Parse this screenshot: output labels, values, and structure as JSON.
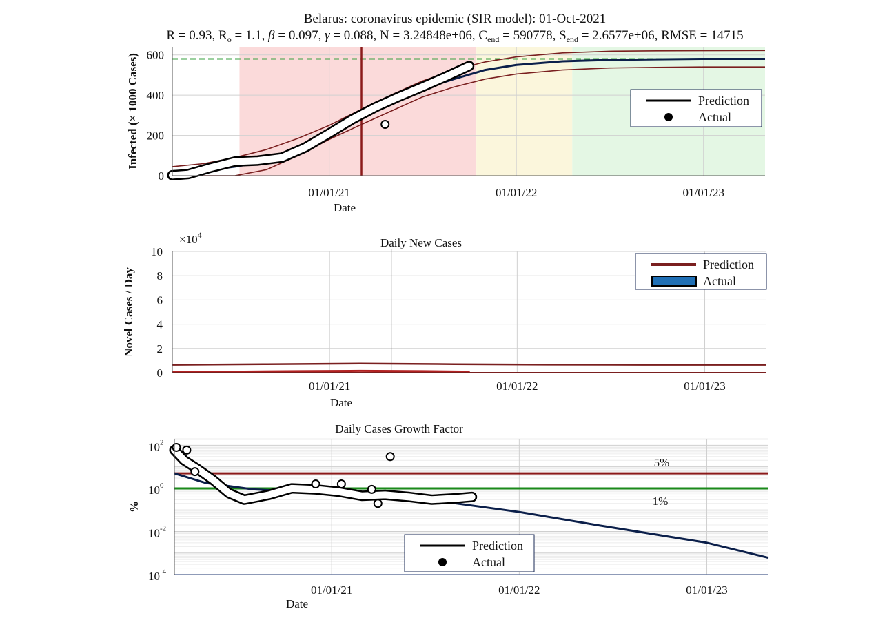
{
  "figure": {
    "title_line1": "Belarus: coronavirus epidemic (SIR model): 01-Oct-2021",
    "title_line2": {
      "p1": "R = 0.93, R",
      "p1_sub": "o",
      "p2": " = 1.1, ",
      "beta_sym": "β",
      "p3": " = 0.097, ",
      "gamma_sym": "γ",
      "p4": " = 0.088, N = 3.24848e+06, C",
      "c_sub": "end",
      "p5": " = 590778, S",
      "s_sub": "end",
      "p6": " = 2.6577e+06, RMSE = 14715"
    }
  },
  "colors": {
    "prediction": "#0b1f4a",
    "bound": "#7a1f1f",
    "actual_outline": "#000000",
    "actual_fill": "#ffffff",
    "threshold_5": "#8b1a1a",
    "threshold_1": "#1a8a1a",
    "bar_actual": "#1f6fb5",
    "red_zone": "#fbdada",
    "yellow_zone": "#fbf6dc",
    "green_zone": "#e4f7e4"
  },
  "chart_data": [
    {
      "type": "line",
      "ylabel": "Infected (× 1000 Cases)",
      "xlabel": "Date",
      "x_ticks": [
        "01/01/21",
        "01/01/22",
        "01/01/23"
      ],
      "x_range": [
        "2020-03-01",
        "2023-05-01"
      ],
      "y_ticks": [
        0,
        200,
        400,
        600
      ],
      "ylim": [
        0,
        640
      ],
      "grid": true,
      "legend": {
        "position": "right",
        "entries": [
          "Prediction",
          "Actual"
        ]
      },
      "event_line_date": "2021-03-05",
      "plateau_level": 580,
      "zones": [
        {
          "name": "red",
          "from": "2020-07-10",
          "to": "2021-10-15"
        },
        {
          "name": "yellow",
          "from": "2021-10-15",
          "to": "2022-04-20"
        },
        {
          "name": "green",
          "from": "2022-04-20",
          "to": "2023-05-01"
        }
      ],
      "series": [
        {
          "name": "Prediction",
          "x": [
            "2020-03-01",
            "2020-05-01",
            "2020-07-01",
            "2020-09-01",
            "2020-11-01",
            "2021-01-01",
            "2021-03-01",
            "2021-05-01",
            "2021-07-01",
            "2021-09-01",
            "2021-11-01",
            "2022-01-01",
            "2022-04-01",
            "2022-07-01",
            "2022-10-01",
            "2023-01-01",
            "2023-05-01"
          ],
          "y": [
            5,
            25,
            45,
            70,
            120,
            200,
            285,
            360,
            430,
            480,
            525,
            550,
            568,
            575,
            578,
            580,
            580
          ]
        },
        {
          "name": "upper",
          "x": [
            "2020-03-01",
            "2020-05-01",
            "2020-07-01",
            "2020-09-01",
            "2020-11-01",
            "2021-01-01",
            "2021-03-01",
            "2021-05-01",
            "2021-07-01",
            "2021-09-01",
            "2021-11-01",
            "2022-01-01",
            "2022-04-01",
            "2022-07-01",
            "2022-10-01",
            "2023-01-01",
            "2023-05-01"
          ],
          "y": [
            45,
            60,
            90,
            130,
            185,
            250,
            325,
            400,
            470,
            525,
            565,
            590,
            610,
            618,
            620,
            621,
            622
          ]
        },
        {
          "name": "lower",
          "x": [
            "2020-03-01",
            "2020-05-01",
            "2020-07-01",
            "2020-09-01",
            "2020-11-01",
            "2021-01-01",
            "2021-03-01",
            "2021-05-01",
            "2021-07-01",
            "2021-09-01",
            "2021-11-01",
            "2022-01-01",
            "2022-04-01",
            "2022-07-01",
            "2022-10-01",
            "2023-01-01",
            "2023-05-01"
          ],
          "y": [
            0,
            0,
            0,
            30,
            100,
            180,
            250,
            320,
            390,
            440,
            480,
            505,
            525,
            535,
            538,
            540,
            540
          ]
        },
        {
          "name": "Actual",
          "x": [
            "2020-03-01",
            "2020-04-01",
            "2020-05-15",
            "2020-07-01",
            "2020-08-15",
            "2020-10-01",
            "2020-11-15",
            "2021-01-01",
            "2021-02-15",
            "2021-04-01",
            "2021-05-15",
            "2021-07-01",
            "2021-08-15",
            "2021-10-01"
          ],
          "y": [
            2,
            8,
            40,
            70,
            75,
            90,
            140,
            210,
            280,
            340,
            390,
            440,
            490,
            545
          ]
        }
      ],
      "outlier": {
        "x": "2021-04-20",
        "y": 255
      }
    },
    {
      "type": "bar",
      "title": "Daily New Cases",
      "ylabel": "Novel Cases / Day",
      "xlabel": "Date",
      "y_multiplier": "×10",
      "y_multiplier_exp": "4",
      "x_ticks": [
        "01/01/21",
        "01/01/22",
        "01/01/23"
      ],
      "y_ticks": [
        0,
        2,
        4,
        6,
        8,
        10
      ],
      "ylim": [
        0,
        10
      ],
      "grid": true,
      "legend": {
        "position": "top-right",
        "entries": [
          "Prediction",
          "Actual"
        ]
      },
      "event_line_date": "2021-05-01",
      "series": [
        {
          "name": "Prediction",
          "x": [
            "2020-03-01",
            "2020-09-01",
            "2021-03-01",
            "2021-09-01",
            "2022-03-01",
            "2022-09-01",
            "2023-05-01"
          ],
          "y": [
            0.65,
            0.7,
            0.75,
            0.7,
            0.66,
            0.65,
            0.65
          ]
        },
        {
          "name": "Actual",
          "x": [
            "2020-03-01",
            "2020-07-01",
            "2020-11-01",
            "2021-03-01",
            "2021-07-01",
            "2021-10-01"
          ],
          "y": [
            0.05,
            0.08,
            0.12,
            0.15,
            0.12,
            0.08
          ]
        }
      ]
    },
    {
      "type": "line",
      "title": "Daily Cases Growth Factor",
      "ylabel": "%",
      "xlabel": "Date",
      "yscale": "log",
      "x_ticks": [
        "01/01/21",
        "01/01/22",
        "01/01/23"
      ],
      "y_ticks": [
        "10^2",
        "10^0",
        "10^-2",
        "10^-4"
      ],
      "ylim": [
        0.0001,
        200
      ],
      "grid": true,
      "legend": {
        "position": "bottom-center",
        "entries": [
          "Prediction",
          "Actual"
        ]
      },
      "thresholds": [
        {
          "label": "5%",
          "value": 5
        },
        {
          "label": "1%",
          "value": 1
        }
      ],
      "series": [
        {
          "name": "Prediction",
          "x": [
            "2020-03-01",
            "2020-05-01",
            "2020-08-01",
            "2021-01-01",
            "2021-06-01",
            "2022-01-01",
            "2022-06-01",
            "2023-01-01",
            "2023-05-01"
          ],
          "y": [
            5,
            1.8,
            0.9,
            0.6,
            0.4,
            0.08,
            0.02,
            0.003,
            0.0006
          ]
        },
        {
          "name": "Actual",
          "x": [
            "2020-03-01",
            "2020-03-20",
            "2020-04-15",
            "2020-05-15",
            "2020-06-15",
            "2020-07-15",
            "2020-09-01",
            "2020-10-15",
            "2020-12-01",
            "2021-01-15",
            "2021-03-01",
            "2021-04-15",
            "2021-06-01",
            "2021-07-15",
            "2021-09-01",
            "2021-10-01"
          ],
          "y": [
            60,
            20,
            8,
            2.5,
            0.6,
            0.3,
            0.5,
            1.0,
            0.9,
            0.7,
            0.45,
            0.5,
            0.4,
            0.3,
            0.35,
            0.4
          ]
        }
      ],
      "markers": [
        {
          "x": "2020-03-05",
          "y": 80
        },
        {
          "x": "2020-03-25",
          "y": 60
        },
        {
          "x": "2020-04-10",
          "y": 6
        },
        {
          "x": "2020-12-01",
          "y": 1.6
        },
        {
          "x": "2021-01-20",
          "y": 1.6
        },
        {
          "x": "2021-03-20",
          "y": 0.9
        },
        {
          "x": "2021-04-01",
          "y": 0.2
        },
        {
          "x": "2021-04-25",
          "y": 30
        }
      ]
    }
  ]
}
